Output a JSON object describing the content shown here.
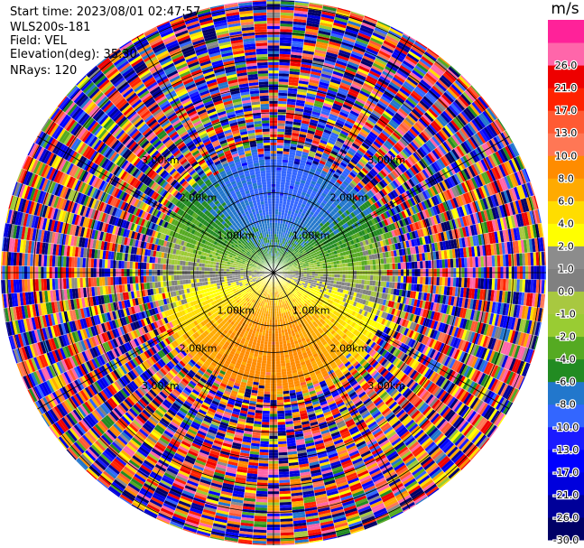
{
  "header": {
    "start_time": "Start time: 2023/08/01 02:47:57",
    "instrument": "WLS200s-181",
    "field": "Field: VEL",
    "elevation": "Elevation(deg): 35.30",
    "nrays": "NRays: 120"
  },
  "chart_data": {
    "type": "heatmap",
    "projection": "polar-ppi",
    "field": "VEL",
    "unit_label": "m/s",
    "n_rays": 120,
    "max_range_km": 3.0,
    "range_ring_labels": [
      "1.00km",
      "2.00km",
      "3.00km"
    ],
    "range_rings_km": [
      1.0,
      2.0,
      3.0
    ],
    "colorbar": {
      "boundaries": [
        -30.0,
        -26.0,
        -21.0,
        -17.0,
        -13.0,
        -10.0,
        -8.0,
        -6.0,
        -4.0,
        -2.0,
        -1.0,
        0.0,
        1.0,
        2.0,
        4.0,
        6.0,
        8.0,
        10.0,
        13.0,
        17.0,
        21.0,
        26.0,
        30.0
      ],
      "tick_labels": [
        "-30.0",
        "-26.0",
        "-21.0",
        "-17.0",
        "-13.0",
        "-10.0",
        "-8.0",
        "-6.0",
        "-4.0",
        "-2.0",
        "-1.0",
        "0.0",
        "1.0",
        "2.0",
        "4.0",
        "6.0",
        "8.0",
        "10.0",
        "13.0",
        "17.0",
        "21.0",
        "26.0"
      ],
      "colors": [
        "#000066",
        "#000099",
        "#0000dd",
        "#0000ff",
        "#1a1aff",
        "#3366ff",
        "#2277cc",
        "#228b22",
        "#55aa22",
        "#99cc33",
        "#a8c840",
        "#808080",
        "#8c8c8c",
        "#ffff00",
        "#ffdd00",
        "#ffaa00",
        "#ff8c00",
        "#ff7755",
        "#ff5a33",
        "#ff2200",
        "#ee0000",
        "#ff66aa",
        "#ff2299"
      ]
    }
  }
}
